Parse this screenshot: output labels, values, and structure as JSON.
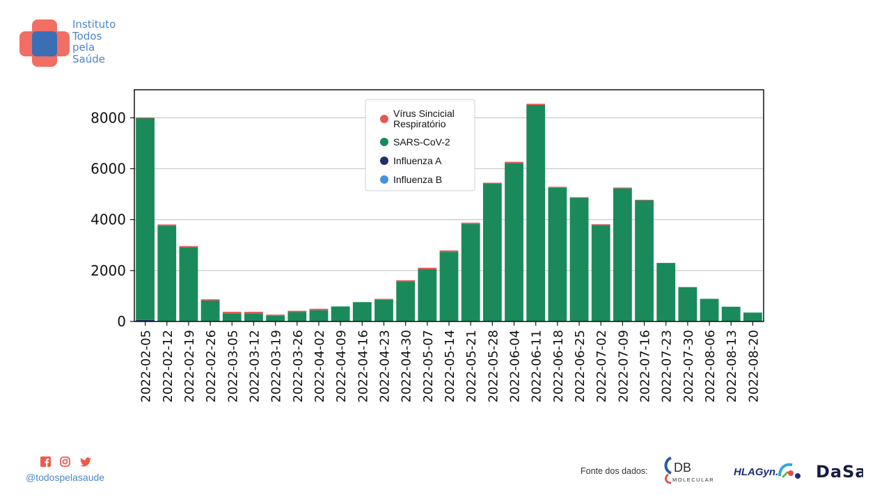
{
  "header": {
    "logo_lines": [
      "Instituto",
      "Todos",
      "pela",
      "Saúde"
    ],
    "logo_colors": {
      "cross": "#f0665c",
      "center": "#3b6fb5"
    }
  },
  "chart_data": {
    "type": "bar",
    "stacked": true,
    "categories": [
      "2022-02-05",
      "2022-02-12",
      "2022-02-19",
      "2022-02-26",
      "2022-03-05",
      "2022-03-12",
      "2022-03-19",
      "2022-03-26",
      "2022-04-02",
      "2022-04-09",
      "2022-04-16",
      "2022-04-23",
      "2022-04-30",
      "2022-05-07",
      "2022-05-14",
      "2022-05-21",
      "2022-05-28",
      "2022-06-04",
      "2022-06-11",
      "2022-06-18",
      "2022-06-25",
      "2022-07-02",
      "2022-07-09",
      "2022-07-16",
      "2022-07-23",
      "2022-07-30",
      "2022-08-06",
      "2022-08-13",
      "2022-08-20"
    ],
    "series": [
      {
        "name": "Influenza B",
        "color": "#4a90d9",
        "values": [
          0,
          0,
          0,
          0,
          0,
          0,
          0,
          0,
          0,
          0,
          0,
          0,
          0,
          0,
          0,
          0,
          0,
          0,
          0,
          0,
          0,
          0,
          0,
          0,
          0,
          0,
          0,
          0,
          0
        ]
      },
      {
        "name": "Influenza A",
        "color": "#1f2f6b",
        "values": [
          60,
          0,
          0,
          0,
          0,
          0,
          0,
          0,
          0,
          0,
          0,
          0,
          0,
          0,
          0,
          0,
          0,
          0,
          0,
          0,
          0,
          0,
          0,
          0,
          0,
          0,
          0,
          0,
          0
        ]
      },
      {
        "name": "SARS-CoV-2",
        "color": "#1b8a5a",
        "values": [
          7920,
          3760,
          2920,
          820,
          320,
          320,
          220,
          370,
          440,
          590,
          760,
          850,
          1580,
          2050,
          2730,
          3830,
          5410,
          6220,
          8500,
          5250,
          4860,
          3790,
          5230,
          4760,
          2300,
          1350,
          890,
          580,
          350
        ]
      },
      {
        "name": "Vírus Sincicial\nRespiratório",
        "color": "#e05a5a",
        "values": [
          30,
          50,
          40,
          50,
          60,
          60,
          50,
          50,
          60,
          0,
          0,
          40,
          40,
          60,
          60,
          50,
          40,
          50,
          50,
          40,
          20,
          30,
          30,
          20,
          0,
          0,
          0,
          0,
          0
        ]
      }
    ],
    "ylim": [
      0,
      9100
    ],
    "yticks": [
      0,
      2000,
      4000,
      6000,
      8000
    ],
    "grid": true,
    "legend": "top-center",
    "legend_order": [
      "Vírus Sincicial\nRespiratório",
      "SARS-CoV-2",
      "Influenza A",
      "Influenza B"
    ]
  },
  "footer": {
    "social_icons": [
      "facebook-icon",
      "instagram-icon",
      "twitter-icon"
    ],
    "social_color": "#ef5a4c",
    "handle": "@todospelasaude",
    "source_label": "Fonte dos dados:",
    "partners": [
      {
        "name": "DB Molecular",
        "line1": "DB",
        "line2": "MOLECULAR"
      },
      {
        "name": "HLAGyn",
        "text": "HLAGyn."
      },
      {
        "name": "Dasa",
        "text": "DaSa"
      }
    ]
  }
}
